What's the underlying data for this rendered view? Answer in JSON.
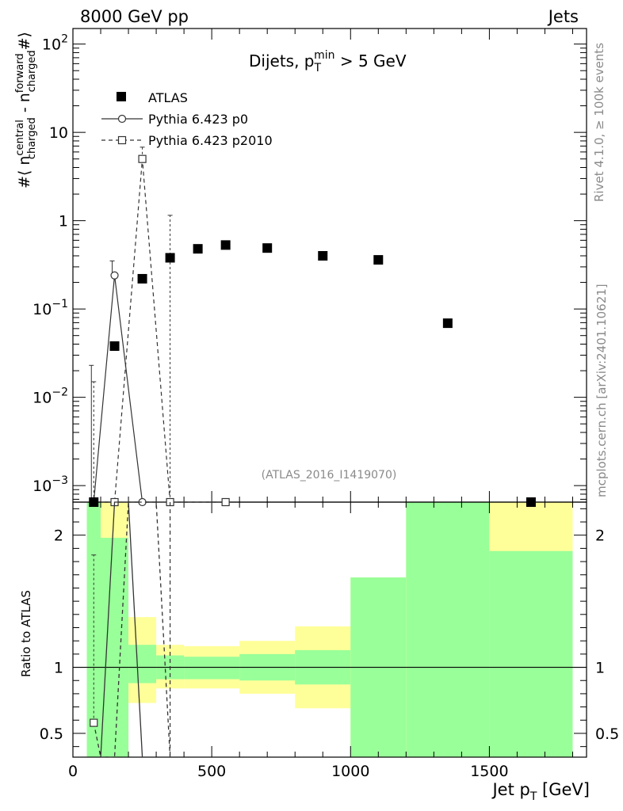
{
  "header": {
    "left": "8000 GeV pp",
    "right": "Jets"
  },
  "side_text": {
    "rivet": "Rivet 4.1.0, ≥ 100k events",
    "mcplots": "mcplots.cern.ch [arXiv:2401.10621]"
  },
  "chart_data": {
    "type": "scatter",
    "title": {
      "main": "Dijets, p",
      "sub": "T",
      "sup": "min",
      "tail": " > 5 GeV"
    },
    "analysis_label": "(ATLAS_2016_I1419070)",
    "xlabel": {
      "main": "Jet p",
      "sub": "T",
      "tail": " [GeV]"
    },
    "ylabel": {
      "prefix": "#⟨ n",
      "sup1": "central",
      "sub1": "charged",
      "mid": " - n",
      "sup2": "forward",
      "sub2": "charged",
      "suffix": "#⟩"
    },
    "ratio_ylabel": "Ratio to ATLAS",
    "xlim": [
      0,
      1850
    ],
    "ylim_main": [
      0.00065,
      150
    ],
    "ylim_ratio": [
      0.32,
      2.25
    ],
    "x_ticks": [
      0,
      500,
      1000,
      1500
    ],
    "x_tick_labels": [
      "0",
      "500",
      "1000",
      "1500"
    ],
    "y_ticks_main": [
      0.001,
      0.01,
      0.1,
      1,
      10,
      100
    ],
    "y_tick_labels_main": {
      "base": [
        "10",
        "10",
        "10",
        "1",
        "10",
        "10"
      ],
      "exp": [
        "−3",
        "−2",
        "−1",
        "",
        "",
        "2"
      ]
    },
    "y_ticks_ratio": [
      0.5,
      1,
      2
    ],
    "y_tick_labels_ratio": [
      "0.5",
      "1",
      "2"
    ],
    "legend": [
      {
        "name": "ATLAS",
        "marker": "filled-square",
        "line": "none"
      },
      {
        "name": "Pythia 6.423 p0",
        "marker": "open-circle",
        "line": "solid"
      },
      {
        "name": "Pythia 6.423 p2010",
        "marker": "open-square",
        "line": "dashed"
      }
    ],
    "series": [
      {
        "name": "ATLAS",
        "x": [
          75,
          150,
          250,
          350,
          450,
          550,
          700,
          900,
          1100,
          1350,
          1650
        ],
        "y": [
          0.00065,
          0.038,
          0.22,
          0.38,
          0.48,
          0.53,
          0.49,
          0.4,
          0.36,
          0.069,
          0.00065
        ]
      },
      {
        "name": "Pythia 6.423 p0",
        "x": [
          75,
          150,
          250,
          350
        ],
        "y": [
          0.00065,
          0.24,
          0.00065,
          0.00065
        ],
        "yerr_hi": [
          0.023,
          0.35,
          null,
          null
        ]
      },
      {
        "name": "Pythia 6.423 p2010",
        "x": [
          75,
          150,
          250,
          350,
          550
        ],
        "y": [
          0.00065,
          0.00065,
          5.0,
          0.00065,
          0.00065
        ],
        "yerr_hi": [
          0.015,
          null,
          6.8,
          1.15,
          null
        ]
      }
    ],
    "ratio_bands": [
      {
        "x0": 50,
        "x1": 100,
        "g": [
          0.32,
          2.25
        ],
        "y": [
          0.32,
          2.25
        ]
      },
      {
        "x0": 100,
        "x1": 200,
        "g": [
          0.32,
          1.98
        ],
        "y": [
          0.32,
          2.25
        ]
      },
      {
        "x0": 200,
        "x1": 300,
        "g": [
          0.88,
          1.17
        ],
        "y": [
          0.73,
          1.38
        ]
      },
      {
        "x0": 300,
        "x1": 400,
        "g": [
          0.91,
          1.09
        ],
        "y": [
          0.84,
          1.17
        ]
      },
      {
        "x0": 400,
        "x1": 600,
        "g": [
          0.91,
          1.08
        ],
        "y": [
          0.84,
          1.16
        ]
      },
      {
        "x0": 600,
        "x1": 800,
        "g": [
          0.9,
          1.1
        ],
        "y": [
          0.8,
          1.2
        ]
      },
      {
        "x0": 800,
        "x1": 1000,
        "g": [
          0.87,
          1.13
        ],
        "y": [
          0.69,
          1.31
        ]
      },
      {
        "x0": 1000,
        "x1": 1200,
        "g": [
          0.32,
          1.68
        ],
        "y": [
          0.32,
          1.68
        ]
      },
      {
        "x0": 1200,
        "x1": 1500,
        "g": [
          0.32,
          2.25
        ],
        "y": [
          0.32,
          2.25
        ]
      },
      {
        "x0": 1500,
        "x1": 1800,
        "g": [
          0.32,
          1.88
        ],
        "y": [
          0.32,
          2.25
        ]
      }
    ],
    "ratio_series": [
      {
        "name": "Pythia 6.423 p0",
        "x": [
          100,
          150,
          200,
          250
        ],
        "y": [
          0.32,
          2.3,
          2.3,
          0.32
        ]
      },
      {
        "name": "Pythia 6.423 p2010",
        "x": [
          75,
          100,
          150,
          200,
          250,
          300,
          350
        ],
        "y": [
          0.58,
          0.32,
          0.32,
          2.3,
          2.3,
          2.3,
          0.32
        ]
      }
    ],
    "ratio_markers": [
      {
        "series": "Pythia 6.423 p2010",
        "x": 75,
        "y": 0.58,
        "yerr_hi": 1.85
      }
    ],
    "colors": {
      "band_inner": "#99ff99",
      "band_outer": "#ffff99",
      "p0_line": "#333333",
      "p2010_line": "#333333",
      "data": "#000000"
    }
  }
}
